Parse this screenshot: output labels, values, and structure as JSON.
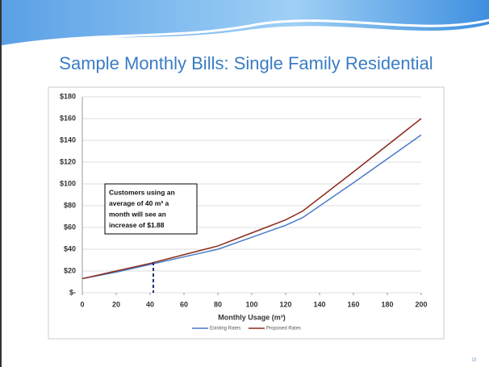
{
  "chart_data": {
    "type": "line",
    "title": "Sample Monthly Bills: Single Family Residential",
    "x_label": "Monthly Usage (m³)",
    "x": [
      0,
      20,
      40,
      60,
      80,
      100,
      120,
      130,
      160,
      200
    ],
    "series": [
      {
        "name": "Existing Rates",
        "color": "#4a7cc7",
        "values": [
          13,
          19,
          26,
          33,
          40,
          51,
          62,
          69,
          101,
          145
        ]
      },
      {
        "name": "Proposed Rates",
        "color": "#8b2a1a",
        "values": [
          13,
          20,
          27,
          35,
          43,
          55,
          67,
          75,
          111,
          160
        ]
      }
    ],
    "xlim": [
      0,
      200
    ],
    "xticks": [
      0,
      20,
      40,
      60,
      80,
      100,
      120,
      140,
      160,
      180,
      200
    ],
    "ylim": [
      0,
      180
    ],
    "yticks": [
      {
        "value": 0,
        "label": "$-"
      },
      {
        "value": 20,
        "label": "$20"
      },
      {
        "value": 40,
        "label": "$40"
      },
      {
        "value": 60,
        "label": "$60"
      },
      {
        "value": 80,
        "label": "$80"
      },
      {
        "value": 100,
        "label": "$100"
      },
      {
        "value": 120,
        "label": "$120"
      },
      {
        "value": 140,
        "label": "$140"
      },
      {
        "value": 160,
        "label": "$160"
      },
      {
        "value": 180,
        "label": "$180"
      }
    ],
    "grid": true,
    "legend": "bottom",
    "annotation": [
      "Customers using an",
      "average of 40 m³ a",
      "month will see an",
      "increase of $1.88"
    ]
  },
  "slide": {
    "number": "13"
  }
}
